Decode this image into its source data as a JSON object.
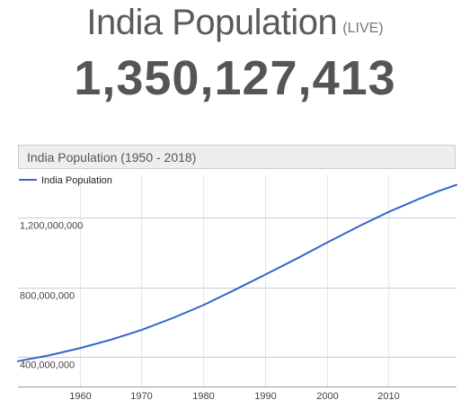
{
  "header": {
    "title": "India Population",
    "live_label": "(LIVE)",
    "counter": "1,350,127,413"
  },
  "chart_data": {
    "type": "line",
    "title": "India Population (1950 - 2018)",
    "legend_position": "top-left",
    "grid": true,
    "xlim": [
      1950,
      2021
    ],
    "ylim": [
      230000000,
      1450000000
    ],
    "x_ticks": [
      1960,
      1970,
      1980,
      1990,
      2000,
      2010
    ],
    "y_ticks": [
      {
        "value": 400000000,
        "label": "400,000,000"
      },
      {
        "value": 800000000,
        "label": "800,000,000"
      },
      {
        "value": 1200000000,
        "label": "1,200,000,000"
      }
    ],
    "series": [
      {
        "name": "India Population",
        "color": "#3366cc",
        "x": [
          1950,
          1955,
          1960,
          1965,
          1970,
          1975,
          1980,
          1985,
          1990,
          1995,
          2000,
          2005,
          2010,
          2015,
          2018,
          2021
        ],
        "values": [
          376000000,
          409000000,
          450000000,
          499000000,
          555000000,
          623000000,
          698000000,
          784000000,
          873000000,
          963000000,
          1057000000,
          1148000000,
          1234000000,
          1310000000,
          1353000000,
          1390000000
        ]
      }
    ]
  },
  "colors": {
    "line": "#3366cc",
    "grid": "#cccccc",
    "title_bar_bg": "#eeeeee",
    "title_bar_border": "#cccccc",
    "text": "#555555"
  }
}
